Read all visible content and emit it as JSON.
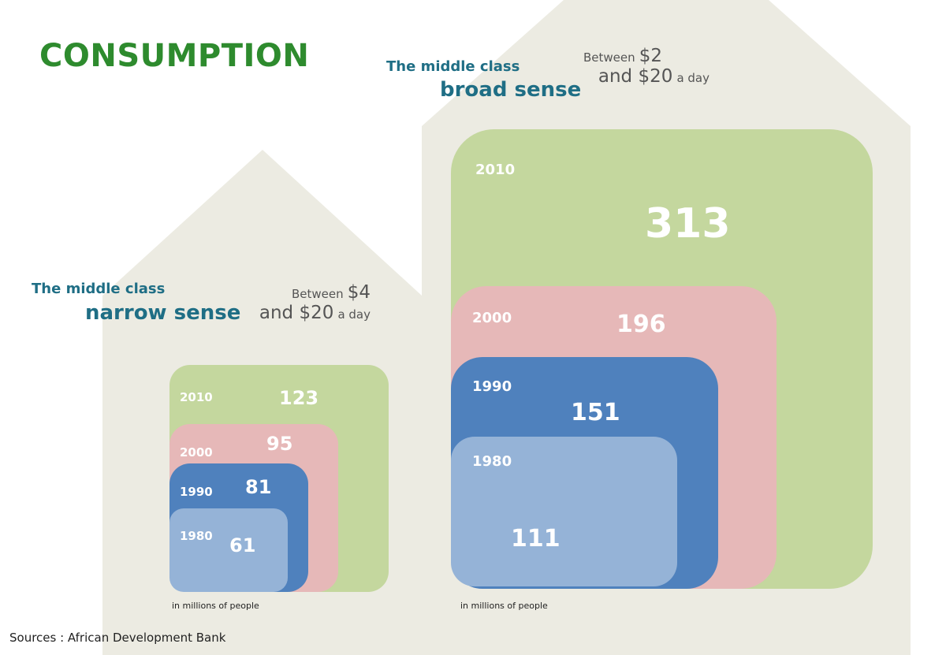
{
  "title": "CONSUMPTION",
  "colors": {
    "title": "#2e8b2e",
    "label": "#1f6e85",
    "house": "#ecebe2",
    "year_2010": "#c4d79e",
    "year_2000": "#e6b8b8",
    "year_1990": "#4f81bd",
    "year_1980": "#95b3d7"
  },
  "narrow": {
    "line1": "The middle class",
    "line2": "narrow sense",
    "range_prefix": "Between",
    "range_low": "$4",
    "range_and": "and $20",
    "range_suffix": "a day",
    "note": "in millions of people"
  },
  "broad": {
    "line1": "The middle class",
    "line2": "broad sense",
    "range_prefix": "Between",
    "range_low": "$2",
    "range_and": "and $20",
    "range_suffix": "a day",
    "note": "in millions of people"
  },
  "source": "Sources : African Development Bank",
  "chart_data": [
    {
      "type": "area",
      "title": "The middle class narrow sense",
      "categories": [
        "2010",
        "2000",
        "1990",
        "1980"
      ],
      "values": [
        123,
        95,
        81,
        61
      ],
      "unit": "in millions of people"
    },
    {
      "type": "area",
      "title": "The middle class broad sense",
      "categories": [
        "2010",
        "2000",
        "1990",
        "1980"
      ],
      "values": [
        313,
        196,
        151,
        111
      ],
      "unit": "in millions of people"
    }
  ]
}
